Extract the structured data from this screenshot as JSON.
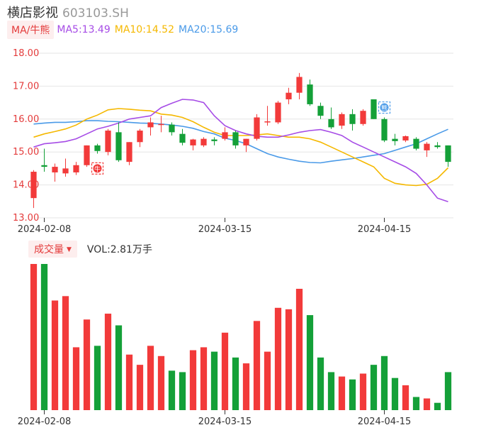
{
  "header": {
    "name": "横店影视",
    "code": "603103.SH"
  },
  "ma_legend": {
    "tag": "MA/牛熊",
    "items": [
      {
        "label": "MA5:13.49",
        "color": "#a64ce6"
      },
      {
        "label": "MA10:14.52",
        "color": "#f5b800"
      },
      {
        "label": "MA20:15.69",
        "color": "#4a9ae8"
      }
    ]
  },
  "volume_legend": {
    "tag": "成交量",
    "value": "VOL:2.81万手"
  },
  "colors": {
    "up": "#f23a3a",
    "down": "#14a038",
    "ma5": "#a64ce6",
    "ma10": "#f5b800",
    "ma20": "#4a9ae8",
    "axis": "#e43b3b"
  },
  "chart_data": [
    {
      "type": "candlestick",
      "ylim": [
        13.0,
        18.0
      ],
      "y_ticks": [
        "18.00",
        "17.00",
        "16.00",
        "15.00",
        "14.00",
        "13.00"
      ],
      "x_ticks": [
        {
          "label": "2024-02-08",
          "index": 1
        },
        {
          "label": "2024-03-15",
          "index": 18
        },
        {
          "label": "2024-04-15",
          "index": 33
        }
      ],
      "markers": [
        {
          "label": "牛",
          "index": 6,
          "price": 14.5,
          "color": "#f23a3a"
        },
        {
          "label": "熊",
          "index": 33,
          "price": 16.35,
          "color": "#4a9ae8"
        }
      ],
      "candles": [
        {
          "o": 13.6,
          "h": 14.45,
          "l": 13.3,
          "c": 14.4
        },
        {
          "o": 14.6,
          "h": 15.1,
          "l": 14.4,
          "c": 14.55
        },
        {
          "o": 14.38,
          "h": 14.65,
          "l": 14.1,
          "c": 14.55
        },
        {
          "o": 14.35,
          "h": 14.8,
          "l": 14.25,
          "c": 14.5
        },
        {
          "o": 14.38,
          "h": 14.7,
          "l": 14.3,
          "c": 14.6
        },
        {
          "o": 14.6,
          "h": 15.2,
          "l": 14.55,
          "c": 15.2
        },
        {
          "o": 15.2,
          "h": 15.25,
          "l": 14.95,
          "c": 15.03
        },
        {
          "o": 15.0,
          "h": 15.7,
          "l": 14.9,
          "c": 15.65
        },
        {
          "o": 15.6,
          "h": 15.9,
          "l": 14.7,
          "c": 14.75
        },
        {
          "o": 14.7,
          "h": 15.3,
          "l": 14.6,
          "c": 15.3
        },
        {
          "o": 15.3,
          "h": 15.7,
          "l": 15.15,
          "c": 15.65
        },
        {
          "o": 15.75,
          "h": 16.05,
          "l": 15.5,
          "c": 15.9
        },
        {
          "o": 15.85,
          "h": 16.1,
          "l": 15.6,
          "c": 15.85
        },
        {
          "o": 15.83,
          "h": 15.9,
          "l": 15.5,
          "c": 15.6
        },
        {
          "o": 15.55,
          "h": 15.7,
          "l": 15.2,
          "c": 15.28
        },
        {
          "o": 15.2,
          "h": 15.4,
          "l": 15.05,
          "c": 15.38
        },
        {
          "o": 15.2,
          "h": 15.45,
          "l": 15.15,
          "c": 15.4
        },
        {
          "o": 15.38,
          "h": 15.45,
          "l": 15.2,
          "c": 15.33
        },
        {
          "o": 15.4,
          "h": 15.75,
          "l": 15.35,
          "c": 15.6
        },
        {
          "o": 15.6,
          "h": 15.65,
          "l": 15.1,
          "c": 15.2
        },
        {
          "o": 15.2,
          "h": 15.4,
          "l": 15.0,
          "c": 15.4
        },
        {
          "o": 15.4,
          "h": 16.15,
          "l": 15.35,
          "c": 16.05
        },
        {
          "o": 15.9,
          "h": 16.4,
          "l": 15.8,
          "c": 15.93
        },
        {
          "o": 15.9,
          "h": 16.55,
          "l": 15.85,
          "c": 16.5
        },
        {
          "o": 16.6,
          "h": 16.95,
          "l": 16.45,
          "c": 16.8
        },
        {
          "o": 16.8,
          "h": 17.4,
          "l": 16.6,
          "c": 17.28
        },
        {
          "o": 17.05,
          "h": 17.2,
          "l": 16.4,
          "c": 16.45
        },
        {
          "o": 16.4,
          "h": 16.5,
          "l": 16.0,
          "c": 16.1
        },
        {
          "o": 16.0,
          "h": 16.35,
          "l": 15.7,
          "c": 15.75
        },
        {
          "o": 15.8,
          "h": 16.2,
          "l": 15.7,
          "c": 16.15
        },
        {
          "o": 16.15,
          "h": 16.3,
          "l": 15.65,
          "c": 15.85
        },
        {
          "o": 15.85,
          "h": 16.3,
          "l": 15.8,
          "c": 16.25
        },
        {
          "o": 16.6,
          "h": 16.6,
          "l": 16.0,
          "c": 16.0
        },
        {
          "o": 16.0,
          "h": 16.05,
          "l": 15.3,
          "c": 15.35
        },
        {
          "o": 15.4,
          "h": 15.55,
          "l": 15.2,
          "c": 15.33
        },
        {
          "o": 15.35,
          "h": 15.5,
          "l": 15.3,
          "c": 15.48
        },
        {
          "o": 15.4,
          "h": 15.45,
          "l": 15.05,
          "c": 15.1
        },
        {
          "o": 15.05,
          "h": 15.3,
          "l": 14.85,
          "c": 15.25
        },
        {
          "o": 15.2,
          "h": 15.3,
          "l": 15.1,
          "c": 15.15
        },
        {
          "o": 15.2,
          "h": 15.2,
          "l": 14.55,
          "c": 14.7
        }
      ],
      "ma5": [
        15.15,
        15.25,
        15.28,
        15.32,
        15.4,
        15.55,
        15.7,
        15.78,
        15.88,
        16.0,
        16.05,
        16.1,
        16.35,
        16.48,
        16.6,
        16.58,
        16.5,
        16.1,
        15.8,
        15.65,
        15.55,
        15.48,
        15.45,
        15.45,
        15.52,
        15.6,
        15.65,
        15.68,
        15.6,
        15.5,
        15.3,
        15.15,
        15.0,
        14.85,
        14.7,
        14.55,
        14.35,
        14.0,
        13.6,
        13.49
      ],
      "ma10": [
        15.45,
        15.55,
        15.62,
        15.7,
        15.82,
        16.0,
        16.12,
        16.28,
        16.32,
        16.3,
        16.27,
        16.25,
        16.15,
        16.12,
        16.05,
        15.92,
        15.75,
        15.6,
        15.5,
        15.5,
        15.5,
        15.52,
        15.55,
        15.5,
        15.45,
        15.45,
        15.4,
        15.3,
        15.15,
        15.0,
        14.85,
        14.7,
        14.55,
        14.2,
        14.05,
        14.0,
        13.98,
        14.02,
        14.2,
        14.52
      ],
      "ma20": [
        15.85,
        15.88,
        15.9,
        15.9,
        15.92,
        15.95,
        15.95,
        15.93,
        15.92,
        15.9,
        15.88,
        15.87,
        15.85,
        15.82,
        15.78,
        15.72,
        15.62,
        15.55,
        15.42,
        15.35,
        15.25,
        15.1,
        14.95,
        14.85,
        14.78,
        14.72,
        14.68,
        14.67,
        14.72,
        14.76,
        14.8,
        14.85,
        14.9,
        14.95,
        15.05,
        15.15,
        15.25,
        15.4,
        15.55,
        15.69
      ]
    },
    {
      "type": "bar",
      "volumes": [
        100,
        100,
        75,
        78,
        43,
        62,
        44,
        66,
        58,
        38,
        31,
        44,
        37,
        27,
        26,
        41,
        43,
        40,
        53,
        36,
        32,
        61,
        40,
        70,
        69,
        83,
        65,
        36,
        26,
        23,
        21,
        25,
        31,
        37,
        22,
        17,
        9,
        8,
        5,
        26
      ],
      "x_ticks": [
        {
          "label": "2024-02-08",
          "index": 1
        },
        {
          "label": "2024-03-15",
          "index": 18
        },
        {
          "label": "2024-04-15",
          "index": 33
        }
      ]
    }
  ]
}
